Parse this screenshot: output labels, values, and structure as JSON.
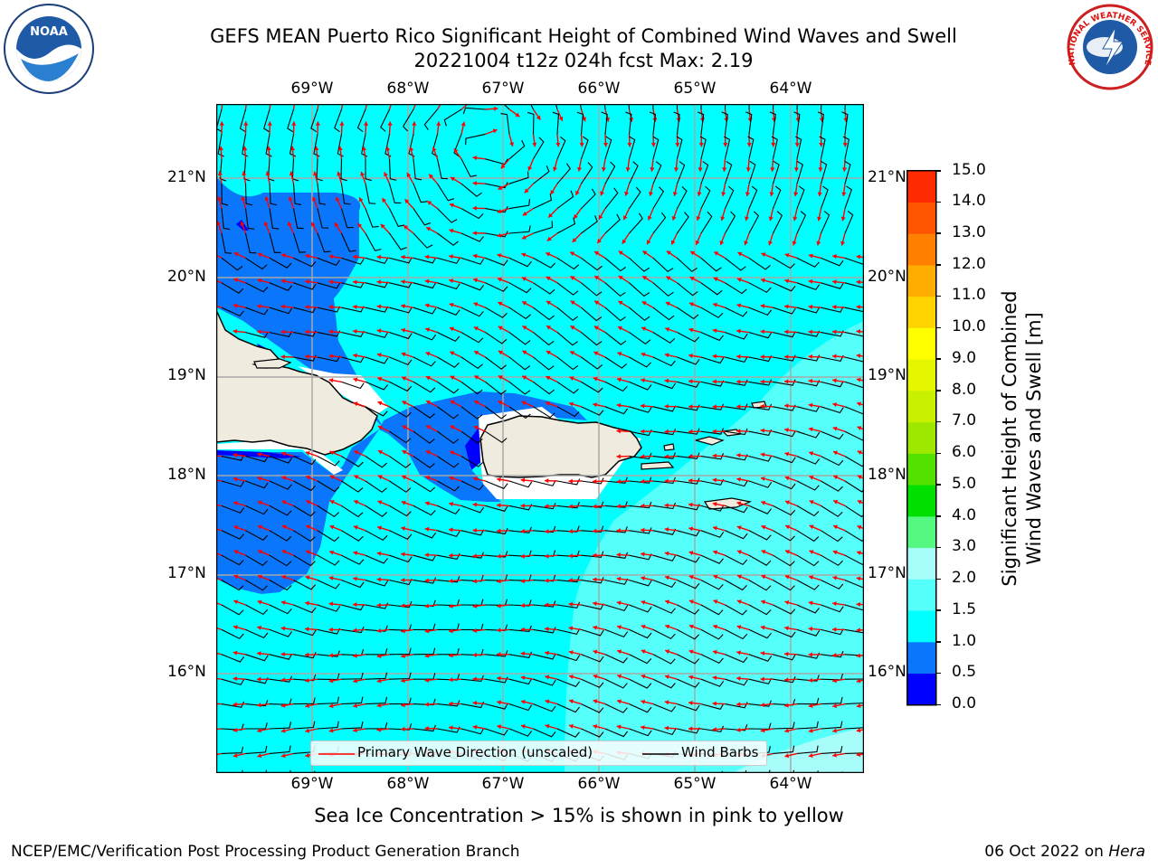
{
  "title_line1": "GEFS MEAN Puerto Rico Significant Height of Combined Wind Waves and Swell",
  "title_line2": "20221004 t12z 024h fcst   Max: 2.19",
  "logos": {
    "left": "NOAA",
    "right": "NATIONAL WEATHER SERVICE"
  },
  "map": {
    "lon_labels": [
      "69°W",
      "68°W",
      "67°W",
      "66°W",
      "65°W",
      "64°W"
    ],
    "lat_labels": [
      "21°N",
      "20°N",
      "19°N",
      "18°N",
      "17°N",
      "16°N"
    ],
    "colors": {
      "land": "#efecdf",
      "blue": "#0000ff",
      "dodger": "#0a76fc",
      "cyan": "#00ffff",
      "aqua": "#55fffa",
      "palecyan": "#a8fdfa"
    }
  },
  "legend": {
    "wave_label": "Primary Wave Direction (unscaled)",
    "barb_label": "Wind Barbs",
    "wave_color": "#ff0000",
    "barb_color": "#000000"
  },
  "colorbar": {
    "label_line1": "Significant Height of Combined",
    "label_line2": "Wind Waves and Swell [m]",
    "ticks": [
      "0.0",
      "0.5",
      "1.0",
      "1.5",
      "2.0",
      "3.0",
      "4.0",
      "5.0",
      "6.0",
      "7.0",
      "8.0",
      "9.0",
      "10.0",
      "11.0",
      "12.0",
      "13.0",
      "14.0",
      "15.0"
    ],
    "colors": [
      "#0000ff",
      "#0a76fc",
      "#00ffff",
      "#55fffa",
      "#a8fdfa",
      "#55f881",
      "#00e000",
      "#54e100",
      "#9ee800",
      "#c8f000",
      "#e6f500",
      "#ffff00",
      "#ffd400",
      "#ffad00",
      "#ff8000",
      "#ff5500",
      "#ff2b00"
    ]
  },
  "subtitle": "Sea Ice Concentration > 15% is shown in pink to yellow",
  "footer_left": "NCEP/EMC/Verification Post Processing Product Generation Branch",
  "footer_right_date": "06 Oct 2022 on ",
  "footer_right_host": "Hera"
}
